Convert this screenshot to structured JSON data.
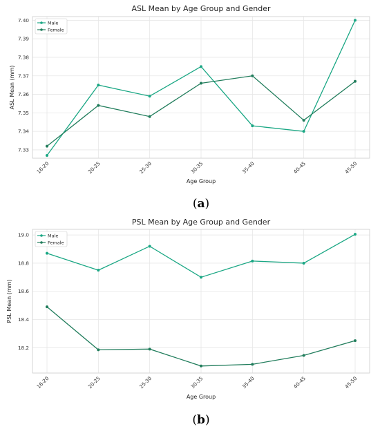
{
  "chart_data": [
    {
      "type": "line",
      "panel_label_open": "(",
      "panel_label_letter": "a",
      "panel_label_close": ")",
      "title": "ASL Mean by Age Group and Gender",
      "xlabel": "Age Group",
      "ylabel": "ASL Mean (mm)",
      "categories": [
        "16-20",
        "20-25",
        "25-30",
        "30-35",
        "35-40",
        "40-45",
        "45-50"
      ],
      "ylim": [
        7.3255,
        7.402
      ],
      "yticks": [
        7.33,
        7.34,
        7.35,
        7.36,
        7.37,
        7.38,
        7.39,
        7.4
      ],
      "ytick_labels": [
        "7.33",
        "7.34",
        "7.35",
        "7.36",
        "7.37",
        "7.38",
        "7.39",
        "7.40"
      ],
      "grid": true,
      "legend_position": "top-left",
      "series": [
        {
          "name": "Male",
          "color": "#1aa784",
          "values": [
            7.327,
            7.365,
            7.359,
            7.375,
            7.343,
            7.34,
            7.4
          ]
        },
        {
          "name": "Female",
          "color": "#217d5c",
          "values": [
            7.332,
            7.354,
            7.348,
            7.366,
            7.37,
            7.346,
            7.367
          ]
        }
      ]
    },
    {
      "type": "line",
      "panel_label_open": "(",
      "panel_label_letter": "b",
      "panel_label_close": ")",
      "title": "PSL Mean by Age Group and Gender",
      "xlabel": "Age Group",
      "ylabel": "PSL Mean (mm)",
      "categories": [
        "16-20",
        "20-25",
        "25-30",
        "30-35",
        "35-40",
        "40-45",
        "45-50"
      ],
      "ylim": [
        18.02,
        19.04
      ],
      "yticks": [
        18.2,
        18.4,
        18.6,
        18.8,
        19.0
      ],
      "ytick_labels": [
        "18.2",
        "18.4",
        "18.6",
        "18.8",
        "19.0"
      ],
      "grid": true,
      "legend_position": "top-left",
      "series": [
        {
          "name": "Male",
          "color": "#1aa784",
          "values": [
            18.87,
            18.75,
            18.92,
            18.7,
            18.815,
            18.8,
            19.005
          ]
        },
        {
          "name": "Female",
          "color": "#217d5c",
          "values": [
            18.49,
            18.185,
            18.19,
            18.07,
            18.082,
            18.145,
            18.25
          ]
        }
      ]
    }
  ]
}
